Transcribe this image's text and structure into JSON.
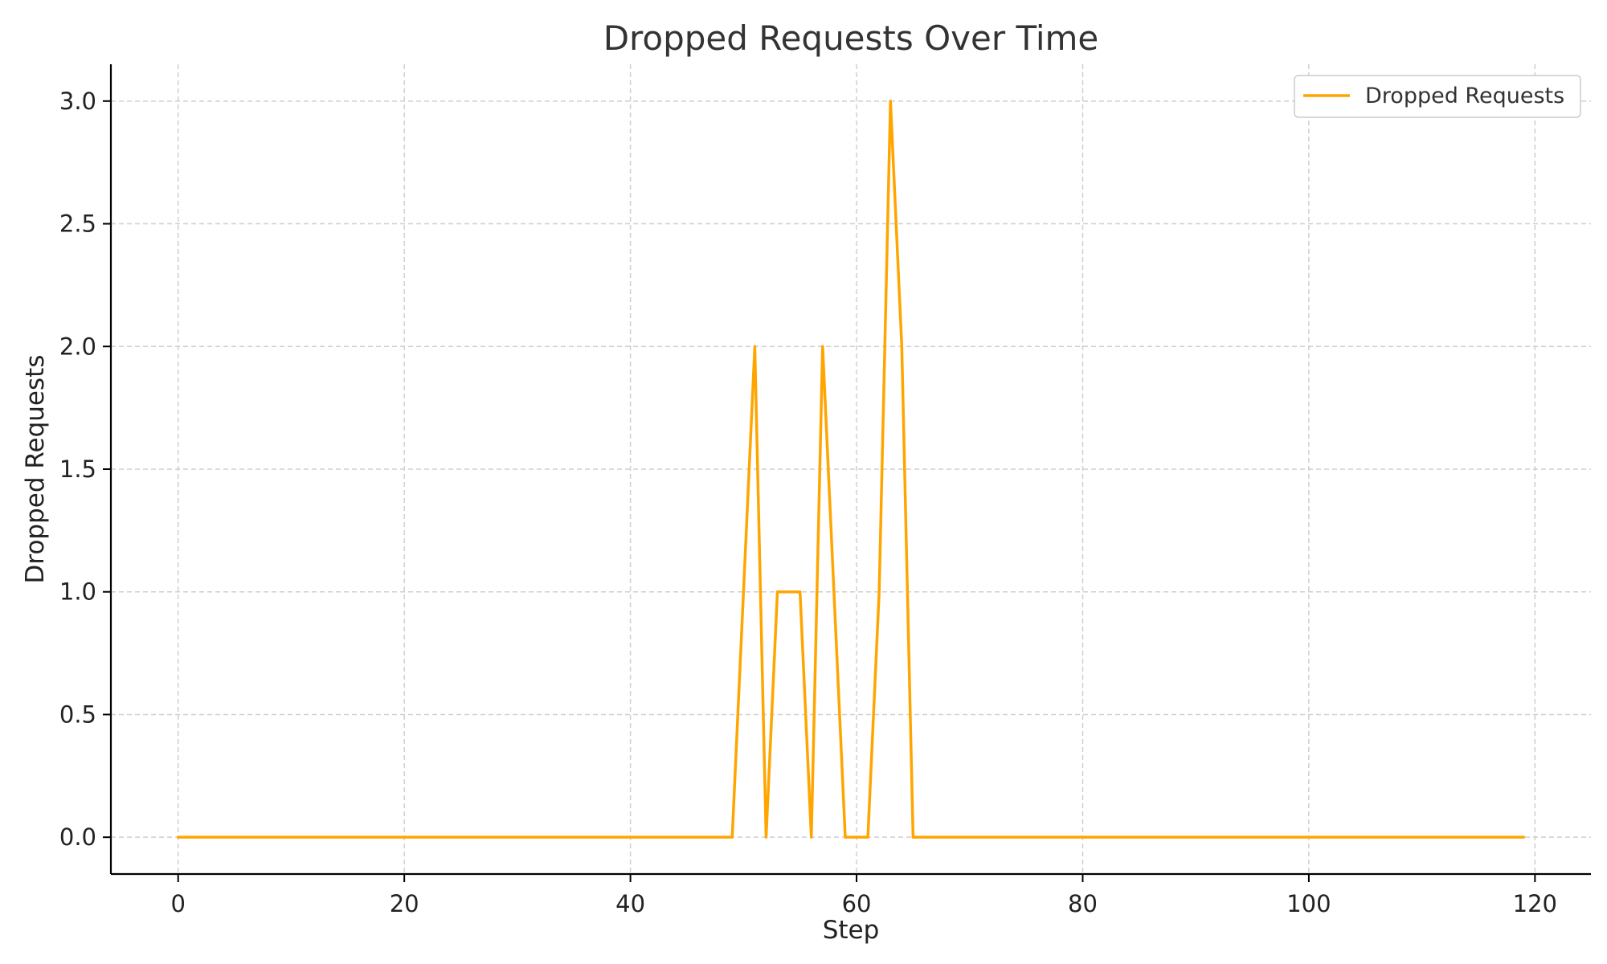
{
  "chart_data": {
    "type": "line",
    "title": "Dropped Requests Over Time",
    "xlabel": "Step",
    "ylabel": "Dropped Requests",
    "xlim": [
      -5.95,
      124.95
    ],
    "ylim": [
      -0.15,
      3.15
    ],
    "x_ticks": [
      0,
      20,
      40,
      60,
      80,
      100,
      120
    ],
    "x_tick_labels": [
      "0",
      "20",
      "40",
      "60",
      "80",
      "100",
      "120"
    ],
    "y_ticks": [
      0,
      0.5,
      1,
      1.5,
      2,
      2.5,
      3
    ],
    "y_tick_labels": [
      "0.0",
      "0.5",
      "1.0",
      "1.5",
      "2.0",
      "2.5",
      "3.0"
    ],
    "grid": true,
    "legend_position": "top-right",
    "series": [
      {
        "name": "Dropped Requests",
        "color": "#FFA500",
        "x": [
          0,
          1,
          2,
          3,
          4,
          5,
          6,
          7,
          8,
          9,
          10,
          11,
          12,
          13,
          14,
          15,
          16,
          17,
          18,
          19,
          20,
          21,
          22,
          23,
          24,
          25,
          26,
          27,
          28,
          29,
          30,
          31,
          32,
          33,
          34,
          35,
          36,
          37,
          38,
          39,
          40,
          41,
          42,
          43,
          44,
          45,
          46,
          47,
          48,
          49,
          50,
          51,
          52,
          53,
          54,
          55,
          56,
          57,
          58,
          59,
          60,
          61,
          62,
          63,
          64,
          65,
          66,
          67,
          68,
          69,
          70,
          71,
          72,
          73,
          74,
          75,
          76,
          77,
          78,
          79,
          80,
          81,
          82,
          83,
          84,
          85,
          86,
          87,
          88,
          89,
          90,
          91,
          92,
          93,
          94,
          95,
          96,
          97,
          98,
          99,
          100,
          101,
          102,
          103,
          104,
          105,
          106,
          107,
          108,
          109,
          110,
          111,
          112,
          113,
          114,
          115,
          116,
          117,
          118,
          119
        ],
        "values": [
          0,
          0,
          0,
          0,
          0,
          0,
          0,
          0,
          0,
          0,
          0,
          0,
          0,
          0,
          0,
          0,
          0,
          0,
          0,
          0,
          0,
          0,
          0,
          0,
          0,
          0,
          0,
          0,
          0,
          0,
          0,
          0,
          0,
          0,
          0,
          0,
          0,
          0,
          0,
          0,
          0,
          0,
          0,
          0,
          0,
          0,
          0,
          0,
          0,
          0,
          1,
          2,
          0,
          1,
          1,
          1,
          0,
          2,
          1,
          0,
          0,
          0,
          1,
          3,
          2,
          0,
          0,
          0,
          0,
          0,
          0,
          0,
          0,
          0,
          0,
          0,
          0,
          0,
          0,
          0,
          0,
          0,
          0,
          0,
          0,
          0,
          0,
          0,
          0,
          0,
          0,
          0,
          0,
          0,
          0,
          0,
          0,
          0,
          0,
          0,
          0,
          0,
          0,
          0,
          0,
          0,
          0,
          0,
          0,
          0,
          0,
          0,
          0,
          0,
          0,
          0,
          0,
          0,
          0,
          0
        ]
      }
    ]
  }
}
